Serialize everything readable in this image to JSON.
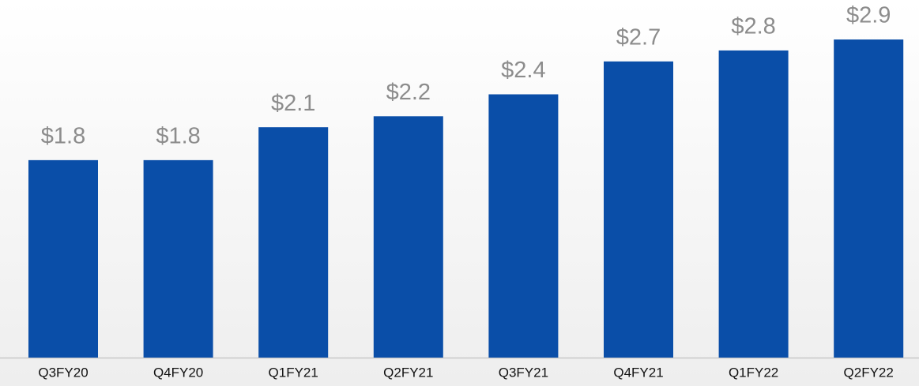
{
  "chart_data": {
    "type": "bar",
    "categories": [
      "Q3FY20",
      "Q4FY20",
      "Q1FY21",
      "Q2FY21",
      "Q3FY21",
      "Q4FY21",
      "Q1FY22",
      "Q2FY22"
    ],
    "values": [
      1.8,
      1.8,
      2.1,
      2.2,
      2.4,
      2.7,
      2.8,
      2.9
    ],
    "value_labels": [
      "$1.8",
      "$1.8",
      "$2.1",
      "$2.2",
      "$2.4",
      "$2.7",
      "$2.8",
      "$2.9"
    ],
    "color": "#0a4ea8",
    "ylim": [
      0,
      3.26
    ]
  }
}
